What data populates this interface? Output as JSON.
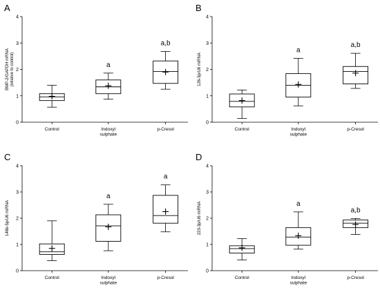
{
  "chart_data": [
    {
      "panel": "A",
      "type": "box",
      "ylabel": [
        "BMP-2/GAPDH mRNA",
        "(relative to control)"
      ],
      "ylim": [
        0,
        4
      ],
      "yticks": [
        "0",
        "1",
        "2",
        "3",
        "4"
      ],
      "categories": [
        [
          "Control"
        ],
        [
          "Indoxyl",
          "sulphate"
        ],
        [
          "p-Cresol"
        ]
      ],
      "boxes": [
        {
          "min": 0.57,
          "q1": 0.82,
          "median": 0.96,
          "q3": 1.08,
          "max": 1.4,
          "mean": 0.98,
          "sig": ""
        },
        {
          "min": 0.87,
          "q1": 1.08,
          "median": 1.34,
          "q3": 1.6,
          "max": 1.86,
          "mean": 1.38,
          "sig": "a"
        },
        {
          "min": 1.25,
          "q1": 1.47,
          "median": 1.92,
          "q3": 2.32,
          "max": 2.68,
          "mean": 1.9,
          "sig": "a,b"
        }
      ]
    },
    {
      "panel": "B",
      "type": "box",
      "ylabel": [
        "126-3p/U6 miRNA"
      ],
      "ylim": [
        0,
        4
      ],
      "yticks": [
        "0",
        "1",
        "2",
        "3",
        "4"
      ],
      "categories": [
        [
          "Control"
        ],
        [
          "Indoxyl",
          "sulphate"
        ],
        [
          "p-Cresol"
        ]
      ],
      "boxes": [
        {
          "min": 0.14,
          "q1": 0.58,
          "median": 0.79,
          "q3": 1.07,
          "max": 1.22,
          "mean": 0.82,
          "sig": ""
        },
        {
          "min": 0.62,
          "q1": 0.95,
          "median": 1.4,
          "q3": 1.84,
          "max": 2.42,
          "mean": 1.43,
          "sig": "a"
        },
        {
          "min": 1.28,
          "q1": 1.45,
          "median": 1.92,
          "q3": 2.11,
          "max": 2.61,
          "mean": 1.86,
          "sig": "a,b"
        }
      ]
    },
    {
      "panel": "C",
      "type": "box",
      "ylabel": [
        "146b-5p/U6 miRNA"
      ],
      "ylim": [
        0,
        4
      ],
      "yticks": [
        "0",
        "1",
        "2",
        "3",
        "4"
      ],
      "categories": [
        [
          "Control"
        ],
        [
          "Indoxyl",
          "sulphate"
        ],
        [
          "p-Cresol"
        ]
      ],
      "boxes": [
        {
          "min": 0.38,
          "q1": 0.62,
          "median": 0.72,
          "q3": 1.02,
          "max": 1.9,
          "mean": 0.85,
          "sig": ""
        },
        {
          "min": 0.76,
          "q1": 1.12,
          "median": 1.71,
          "q3": 2.13,
          "max": 2.53,
          "mean": 1.67,
          "sig": "a"
        },
        {
          "min": 1.48,
          "q1": 1.81,
          "median": 2.1,
          "q3": 2.87,
          "max": 3.27,
          "mean": 2.25,
          "sig": "a"
        }
      ]
    },
    {
      "panel": "D",
      "type": "box",
      "ylabel": [
        "223-3p/U6 miRNA"
      ],
      "ylim": [
        0,
        4
      ],
      "yticks": [
        "0",
        "1",
        "2",
        "3",
        "4"
      ],
      "categories": [
        [
          "Control"
        ],
        [
          "Indoxyl",
          "sulphate"
        ],
        [
          "p-Cresol"
        ]
      ],
      "boxes": [
        {
          "min": 0.41,
          "q1": 0.67,
          "median": 0.84,
          "q3": 0.95,
          "max": 1.22,
          "mean": 0.87,
          "sig": ""
        },
        {
          "min": 0.82,
          "q1": 0.97,
          "median": 1.28,
          "q3": 1.64,
          "max": 2.24,
          "mean": 1.33,
          "sig": "a"
        },
        {
          "min": 1.38,
          "q1": 1.64,
          "median": 1.81,
          "q3": 1.93,
          "max": 1.99,
          "mean": 1.76,
          "sig": "a,b"
        }
      ]
    }
  ]
}
